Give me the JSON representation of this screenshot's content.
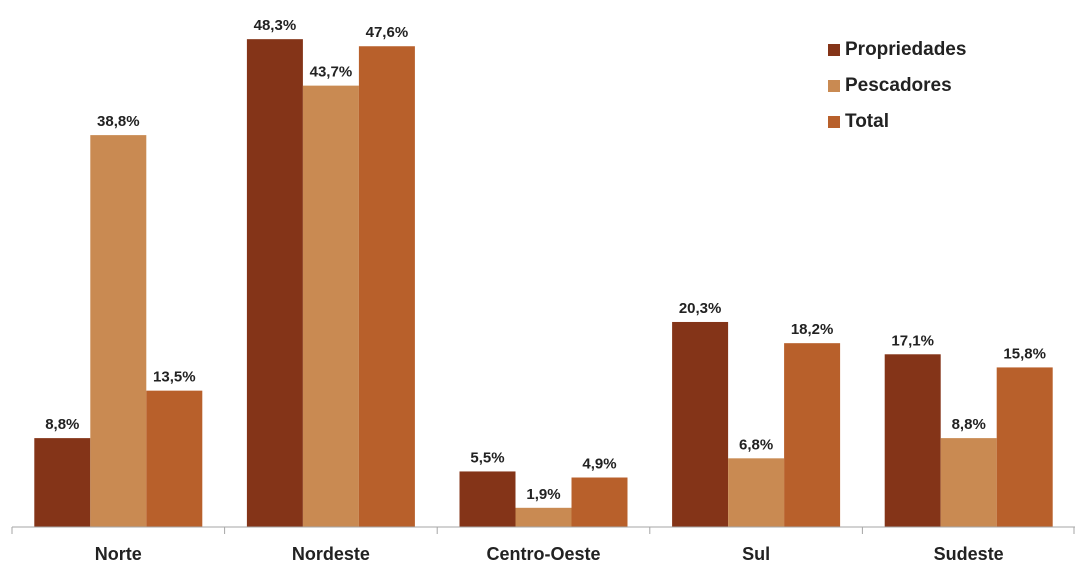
{
  "chart_data": {
    "type": "bar",
    "title": "",
    "xlabel": "",
    "ylabel": "",
    "ylim": [
      0,
      50
    ],
    "grid": false,
    "legend_position": "top-right",
    "categories": [
      "Norte",
      "Nordeste",
      "Centro-Oeste",
      "Sul",
      "Sudeste"
    ],
    "series": [
      {
        "name": "Propriedades",
        "color": "#843418",
        "values": [
          8.8,
          48.3,
          5.5,
          20.3,
          17.1
        ],
        "labels": [
          "8,8%",
          "48,3%",
          "5,5%",
          "20,3%",
          "17,1%"
        ]
      },
      {
        "name": "Pescadores",
        "color": "#C98A52",
        "values": [
          38.8,
          43.7,
          1.9,
          6.8,
          8.8
        ],
        "labels": [
          "38,8%",
          "43,7%",
          "1,9%",
          "6,8%",
          "8,8%"
        ]
      },
      {
        "name": "Total",
        "color": "#B8602B",
        "values": [
          13.5,
          47.6,
          4.9,
          18.2,
          15.8
        ],
        "labels": [
          "13,5%",
          "47,6%",
          "4,9%",
          "18,2%",
          "15,8%"
        ]
      }
    ]
  }
}
